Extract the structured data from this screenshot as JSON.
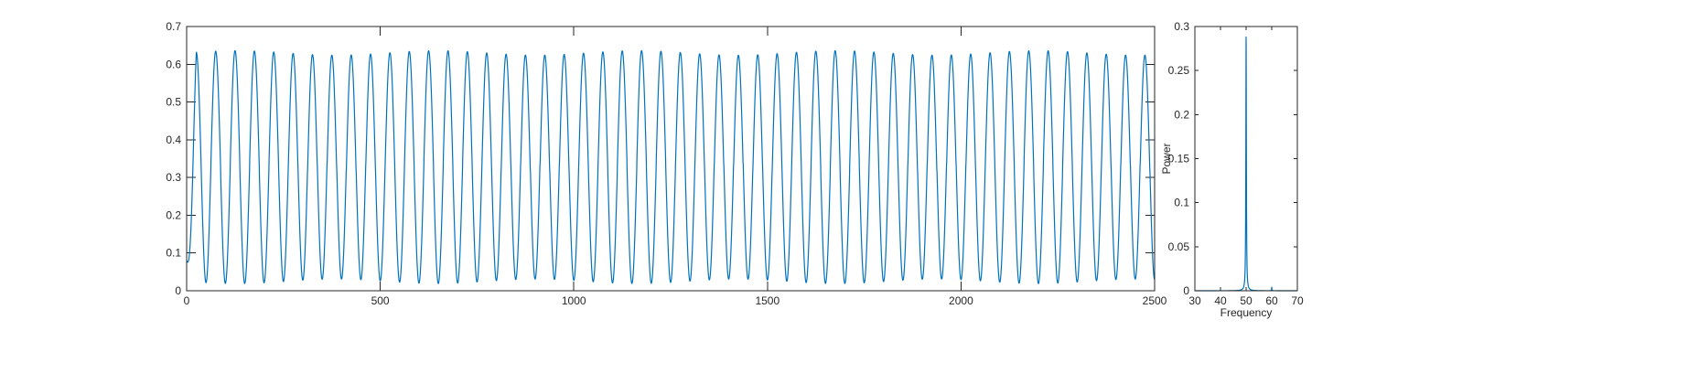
{
  "chart_data": [
    {
      "type": "line",
      "title": "",
      "xlabel": "",
      "ylabel": "",
      "xlim": [
        0,
        2500
      ],
      "ylim": [
        0,
        0.7
      ],
      "xticks": [
        0,
        500,
        1000,
        1500,
        2000,
        2500
      ],
      "yticks": [
        0,
        0.1,
        0.2,
        0.3,
        0.4,
        0.5,
        0.6,
        0.7
      ],
      "xtick_labels": [
        "0",
        "500",
        "1000",
        "1500",
        "2000",
        "2500"
      ],
      "ytick_labels": [
        "0",
        "0.1",
        "0.2",
        "0.3",
        "0.4",
        "0.5",
        "0.6",
        "0.7"
      ],
      "grid": false,
      "series": [
        {
          "color": "#0072BD",
          "x": [
            0,
            2500
          ],
          "y_min": 0.025,
          "y_max": 0.63,
          "period": 50,
          "start_value": 0.08,
          "first_peak_x": 25
        }
      ]
    },
    {
      "type": "line",
      "title": "",
      "xlabel": "Frequency",
      "ylabel": "Power",
      "xlim": [
        30,
        70
      ],
      "ylim": [
        0,
        0.3
      ],
      "xticks": [
        30,
        40,
        50,
        60,
        70
      ],
      "yticks": [
        0,
        0.05,
        0.1,
        0.15,
        0.2,
        0.25,
        0.3
      ],
      "xtick_labels": [
        "30",
        "40",
        "50",
        "60",
        "70"
      ],
      "ytick_labels": [
        "0",
        "0.05",
        "0.1",
        "0.15",
        "0.2",
        "0.25",
        "0.3"
      ],
      "grid": false,
      "series": [
        {
          "color": "#0072BD",
          "peaks": [
            {
              "x": 50,
              "y": 0.288
            },
            {
              "x": 60,
              "y": 0.004
            },
            {
              "x": 40,
              "y": 0.001
            }
          ]
        }
      ]
    }
  ]
}
